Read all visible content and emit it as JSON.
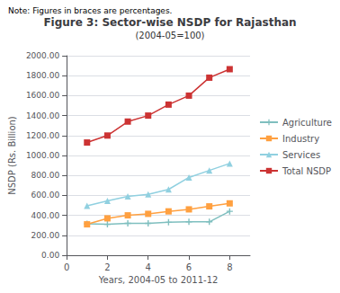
{
  "chart_data": {
    "type": "line",
    "title": "Figure 3: Sector-wise NSDP for Rajasthan",
    "subtitle": "(2004-05=100)",
    "annotations": [
      "Note: Figures in braces are percentages."
    ],
    "x_label": "Years, 2004-05 to 2011-12",
    "y_label": "NSDP (Rs. Billion)",
    "x": [
      1,
      2,
      3,
      4,
      5,
      6,
      7,
      8
    ],
    "series": [
      {
        "name": "Agriculture",
        "color": "#7fbfbf",
        "marker": "plus",
        "values": [
          315,
          310,
          320,
          320,
          330,
          335,
          335,
          440
        ]
      },
      {
        "name": "Industry",
        "color": "#ffa040",
        "marker": "square",
        "values": [
          310,
          370,
          400,
          415,
          440,
          460,
          490,
          520
        ]
      },
      {
        "name": "Services",
        "color": "#90d0e0",
        "marker": "triangle",
        "values": [
          495,
          545,
          590,
          610,
          660,
          780,
          850,
          920
        ]
      },
      {
        "name": "Total NSDP",
        "color": "#cc3333",
        "marker": "square",
        "values": [
          1130,
          1200,
          1340,
          1400,
          1510,
          1600,
          1780,
          1865
        ]
      }
    ],
    "xlim": [
      0,
      9
    ],
    "xticks": [
      0,
      2,
      4,
      6,
      8
    ],
    "ylim": [
      0,
      2000
    ],
    "yticks": [
      {
        "value": 0,
        "label": "0.00"
      },
      {
        "value": 200,
        "label": "200.00"
      },
      {
        "value": 400,
        "label": "400.00"
      },
      {
        "value": 600,
        "label": "600.00"
      },
      {
        "value": 800,
        "label": "800.00"
      },
      {
        "value": 1000,
        "label": "1000.00"
      },
      {
        "value": 1200,
        "label": "1200.00"
      },
      {
        "value": 1400,
        "label": "1400.00"
      },
      {
        "value": 1600,
        "label": "1600.00"
      },
      {
        "value": 1800,
        "label": "1800.00"
      },
      {
        "value": 2000,
        "label": "2000.00"
      }
    ],
    "grid": "y",
    "legend": "right"
  }
}
